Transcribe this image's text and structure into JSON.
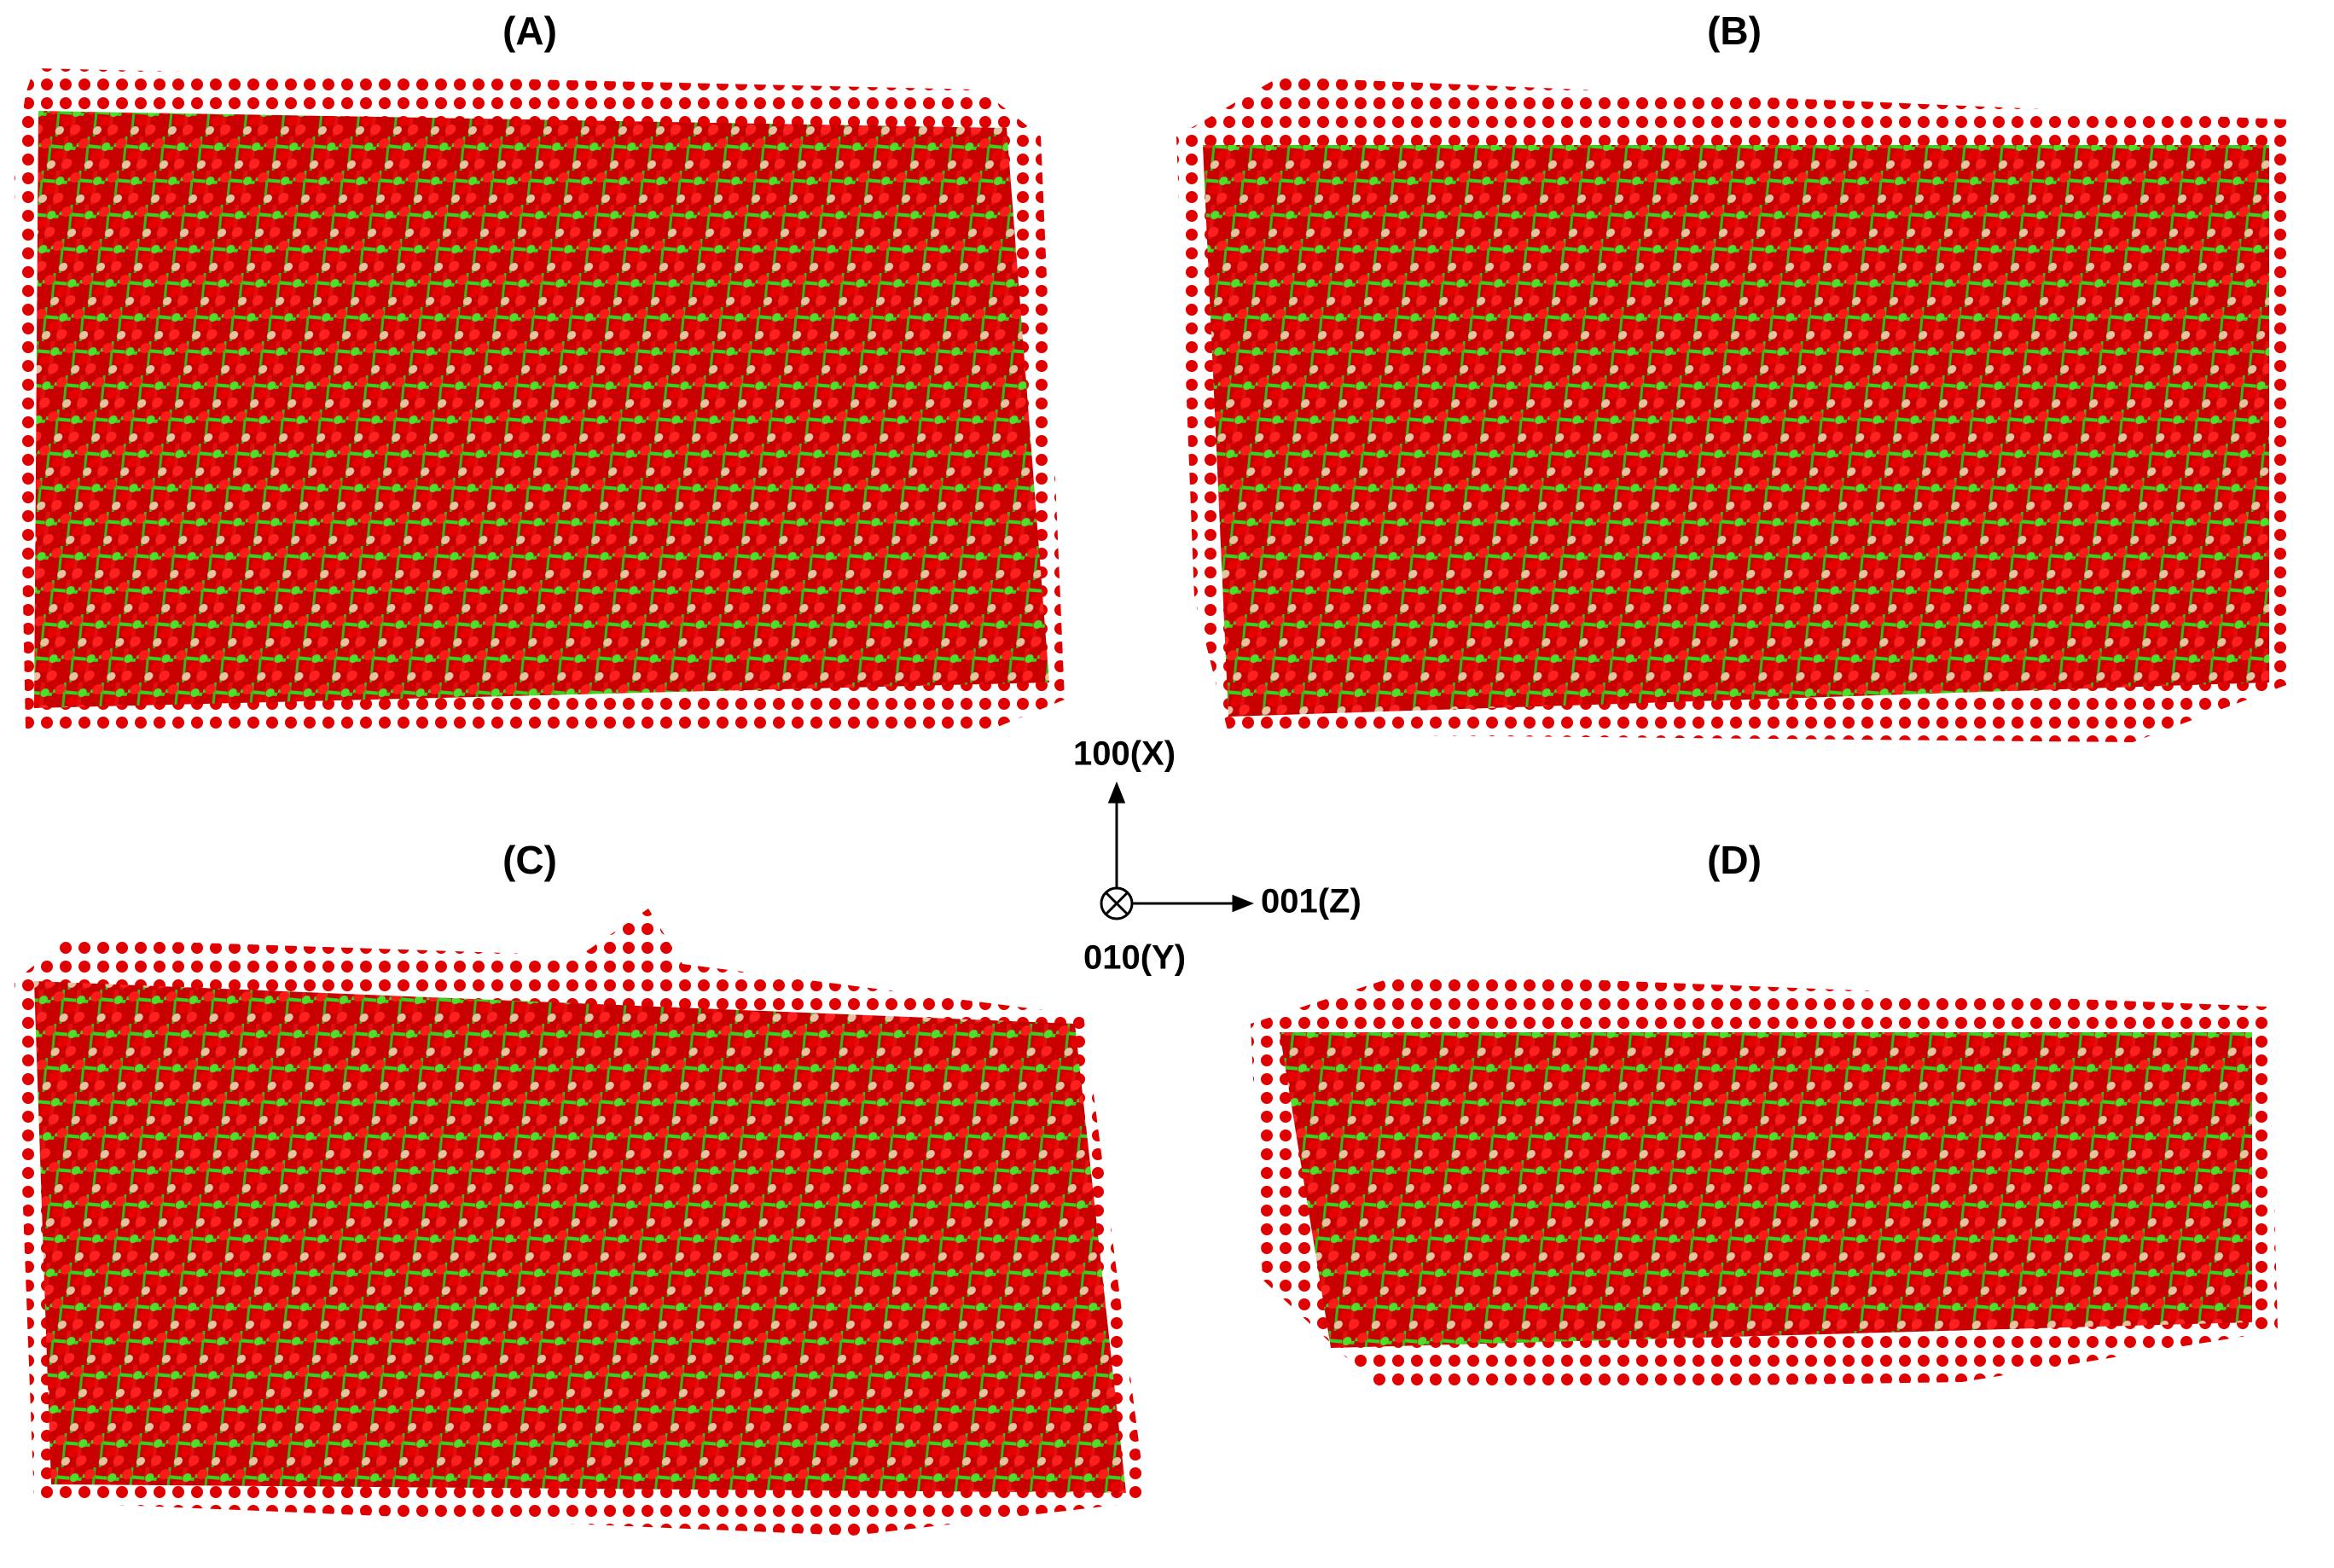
{
  "panels": [
    {
      "label": "(A)"
    },
    {
      "label": "(B)"
    },
    {
      "label": "(C)"
    },
    {
      "label": "(D)"
    }
  ],
  "axes": {
    "x": "100(X)",
    "z": "001(Z)",
    "y": "010(Y)"
  }
}
